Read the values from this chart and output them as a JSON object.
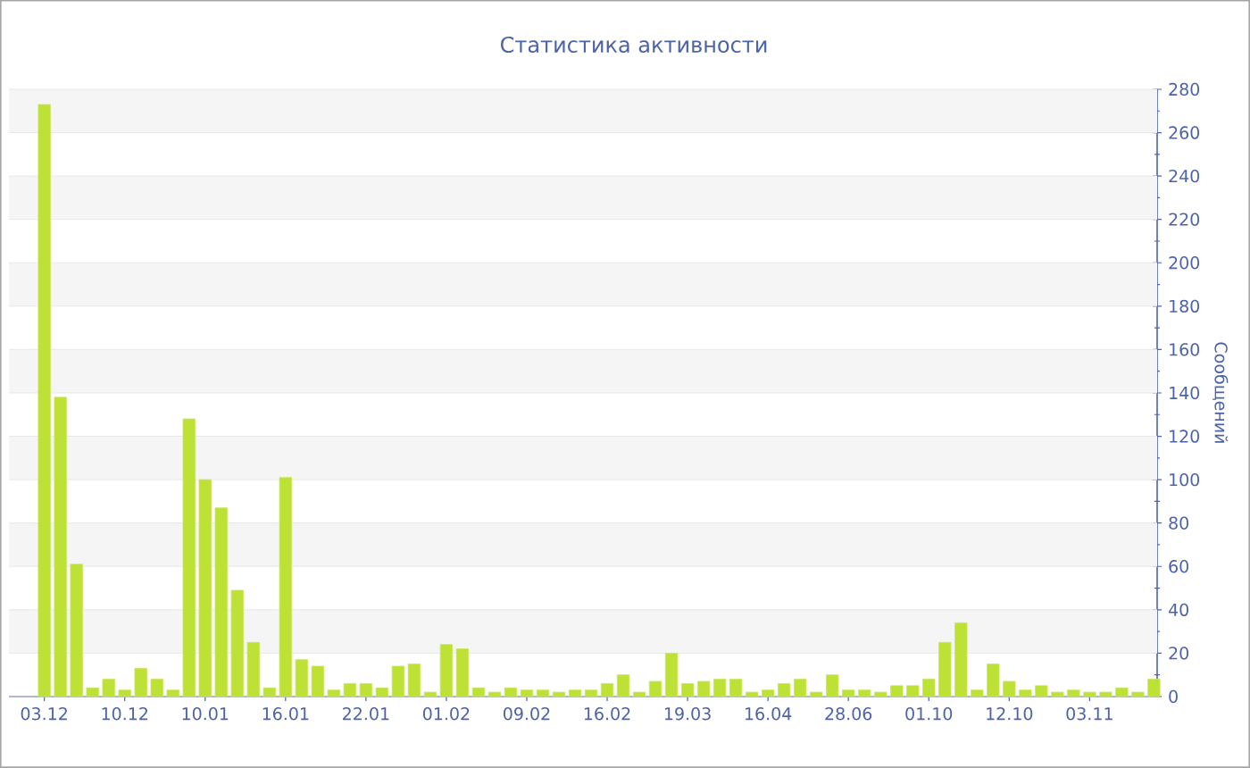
{
  "chart_data": {
    "type": "bar",
    "title": "Статистика активности",
    "ylabel": "Сообщений",
    "categories": [
      "03.12",
      null,
      null,
      null,
      null,
      "10.12",
      null,
      null,
      null,
      null,
      "10.01",
      null,
      null,
      null,
      null,
      "16.01",
      null,
      null,
      null,
      null,
      "22.01",
      null,
      null,
      null,
      null,
      "01.02",
      null,
      null,
      null,
      null,
      "09.02",
      null,
      null,
      null,
      null,
      "16.02",
      null,
      null,
      null,
      null,
      "19.03",
      null,
      null,
      null,
      null,
      "16.04",
      null,
      null,
      null,
      null,
      "28.06",
      null,
      null,
      null,
      null,
      "01.10",
      null,
      null,
      null,
      null,
      "12.10",
      null,
      null,
      null,
      null,
      "03.11",
      null,
      null,
      null,
      null
    ],
    "values": [
      273,
      138,
      61,
      4,
      8,
      3,
      13,
      8,
      3,
      128,
      100,
      87,
      49,
      25,
      4,
      101,
      17,
      14,
      3,
      6,
      6,
      4,
      14,
      15,
      2,
      24,
      22,
      4,
      2,
      4,
      3,
      3,
      2,
      3,
      3,
      6,
      10,
      2,
      7,
      20,
      6,
      7,
      8,
      8,
      2,
      3,
      6,
      8,
      2,
      10,
      3,
      3,
      2,
      5,
      5,
      8,
      25,
      34,
      3,
      15,
      7,
      3,
      5,
      2,
      3,
      2,
      2,
      4,
      2,
      8
    ],
    "color": "#bde134",
    "ylim": [
      0,
      280
    ],
    "yticks": [
      0,
      20,
      40,
      60,
      80,
      100,
      120,
      140,
      160,
      180,
      200,
      220,
      240,
      260,
      280
    ],
    "grid": "y"
  }
}
